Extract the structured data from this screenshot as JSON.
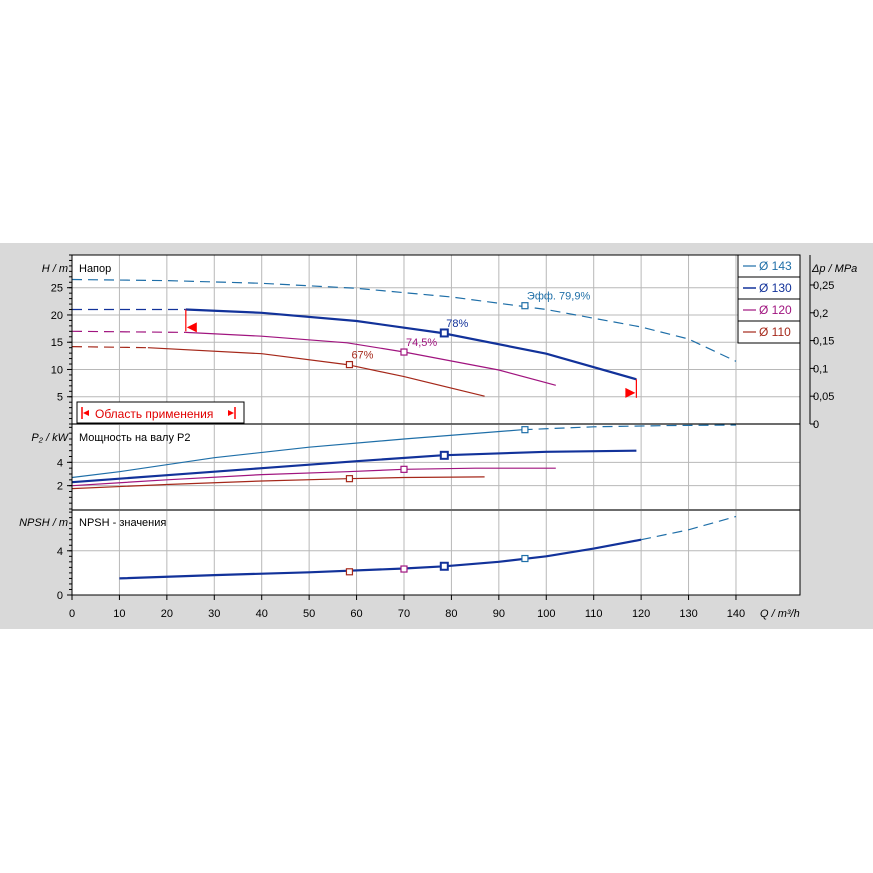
{
  "legend": {
    "items": [
      {
        "label": "Ø 143",
        "color": "#1f6fa8",
        "dashed": true
      },
      {
        "label": "Ø 130",
        "color": "#12329a",
        "dashed": false
      },
      {
        "label": "Ø 120",
        "color": "#a0147f",
        "dashed": false
      },
      {
        "label": "Ø 110",
        "color": "#a5281a",
        "dashed": false
      }
    ]
  },
  "range_label": "Область применения",
  "chart_data": [
    {
      "type": "line",
      "title": "Напор",
      "ylabel": "H / m",
      "y2label": "Δp / MPa",
      "ylim": [
        0,
        31
      ],
      "yticks": [
        5,
        10,
        15,
        20,
        25
      ],
      "y2ticks": [
        "0",
        "0,05",
        "0,1",
        "0,15",
        "0,2",
        "0,25"
      ],
      "grid": true,
      "series": [
        {
          "name": "Ø 143",
          "color": "#1f6fa8",
          "dashed": true,
          "points": [
            [
              0,
              26.5
            ],
            [
              20,
              26.3
            ],
            [
              40,
              25.8
            ],
            [
              60,
              24.9
            ],
            [
              80,
              23.3
            ],
            [
              100,
              21.0
            ],
            [
              120,
              17.8
            ],
            [
              130,
              15.6
            ],
            [
              140,
              11.5
            ]
          ]
        },
        {
          "name": "Ø 130",
          "color": "#12329a",
          "dashed": true,
          "points": [
            [
              0,
              21.0
            ],
            [
              24,
              21.0
            ]
          ]
        },
        {
          "name": "Ø 130",
          "color": "#12329a",
          "dashed": false,
          "bold": true,
          "points": [
            [
              24,
              21.0
            ],
            [
              40,
              20.4
            ],
            [
              60,
              18.9
            ],
            [
              78,
              16.7
            ],
            [
              100,
              12.9
            ],
            [
              119,
              8.2
            ]
          ]
        },
        {
          "name": "Ø 120",
          "color": "#a0147f",
          "dashed": true,
          "points": [
            [
              0,
              17.0
            ],
            [
              24,
              16.8
            ]
          ]
        },
        {
          "name": "Ø 120",
          "color": "#a0147f",
          "dashed": false,
          "points": [
            [
              24,
              16.8
            ],
            [
              40,
              16.1
            ],
            [
              58,
              14.9
            ],
            [
              70,
              13.2
            ],
            [
              90,
              9.9
            ],
            [
              102,
              7.1
            ]
          ]
        },
        {
          "name": "Ø 110",
          "color": "#a5281a",
          "dashed": true,
          "points": [
            [
              0,
              14.2
            ],
            [
              16,
              14.0
            ]
          ]
        },
        {
          "name": "Ø 110",
          "color": "#a5281a",
          "dashed": false,
          "points": [
            [
              16,
              14.0
            ],
            [
              40,
              12.9
            ],
            [
              58,
              10.9
            ],
            [
              70,
              8.7
            ],
            [
              87,
              5.1
            ]
          ]
        }
      ],
      "markers": [
        {
          "x": 95.5,
          "y": 21.7,
          "color": "#1f6fa8",
          "label": "Эфф.  79,9%"
        },
        {
          "x": 78.5,
          "y": 16.7,
          "color": "#12329a",
          "label": "78%",
          "bold": true
        },
        {
          "x": 70,
          "y": 13.2,
          "color": "#a0147f",
          "label": "74,5%"
        },
        {
          "x": 58.5,
          "y": 10.9,
          "color": "#a5281a",
          "label": "67%"
        }
      ],
      "range": {
        "qmin": 24,
        "qmax": 119
      }
    },
    {
      "type": "line",
      "title": "Мощность на валу P2",
      "ylabel": "P₂ / kW",
      "ylim": [
        0,
        7.2
      ],
      "yticks": [
        2,
        4
      ],
      "grid": true,
      "series": [
        {
          "name": "Ø 143",
          "color": "#1f6fa8",
          "dashed": false,
          "points": [
            [
              0,
              2.7
            ],
            [
              10,
              3.2
            ],
            [
              30,
              4.4
            ],
            [
              50,
              5.3
            ],
            [
              70,
              6.0
            ],
            [
              95,
              6.8
            ]
          ]
        },
        {
          "name": "Ø 143",
          "color": "#1f6fa8",
          "dashed": true,
          "points": [
            [
              95,
              6.8
            ],
            [
              110,
              7.05
            ],
            [
              125,
              7.15
            ],
            [
              140,
              7.2
            ]
          ]
        },
        {
          "name": "Ø 130",
          "color": "#12329a",
          "dashed": false,
          "bold": true,
          "points": [
            [
              0,
              2.3
            ],
            [
              20,
              2.9
            ],
            [
              40,
              3.5
            ],
            [
              60,
              4.1
            ],
            [
              78,
              4.6
            ],
            [
              100,
              4.9
            ],
            [
              119,
              5.0
            ]
          ]
        },
        {
          "name": "Ø 120",
          "color": "#a0147f",
          "dashed": false,
          "points": [
            [
              0,
              2.0
            ],
            [
              20,
              2.5
            ],
            [
              40,
              2.95
            ],
            [
              58,
              3.2
            ],
            [
              70,
              3.4
            ],
            [
              85,
              3.5
            ],
            [
              102,
              3.5
            ]
          ]
        },
        {
          "name": "Ø 110",
          "color": "#a5281a",
          "dashed": false,
          "points": [
            [
              0,
              1.75
            ],
            [
              20,
              2.1
            ],
            [
              40,
              2.4
            ],
            [
              58,
              2.6
            ],
            [
              70,
              2.7
            ],
            [
              87,
              2.75
            ]
          ]
        }
      ],
      "markers": [
        {
          "x": 95.5,
          "y": 6.8,
          "color": "#1f6fa8"
        },
        {
          "x": 78.5,
          "y": 4.6,
          "color": "#12329a",
          "bold": true
        },
        {
          "x": 70,
          "y": 3.4,
          "color": "#a0147f"
        },
        {
          "x": 58.5,
          "y": 2.6,
          "color": "#a5281a"
        }
      ]
    },
    {
      "type": "line",
      "title": "NPSH - значения",
      "ylabel": "NPSH / m",
      "ylim": [
        0,
        7.6
      ],
      "yticks": [
        0,
        4
      ],
      "grid": true,
      "xlabel": "Q / m³/h",
      "xticks": [
        0,
        10,
        20,
        30,
        40,
        50,
        60,
        70,
        80,
        90,
        100,
        110,
        120,
        130,
        140
      ],
      "xlim": [
        0,
        153.5
      ],
      "series": [
        {
          "name": "Ø 130",
          "color": "#12329a",
          "dashed": false,
          "bold": true,
          "points": [
            [
              10,
              1.5
            ],
            [
              30,
              1.8
            ],
            [
              50,
              2.05
            ],
            [
              70,
              2.4
            ],
            [
              78.5,
              2.6
            ],
            [
              90,
              3.0
            ],
            [
              100,
              3.5
            ],
            [
              110,
              4.2
            ],
            [
              120,
              5.0
            ]
          ]
        },
        {
          "name": "Ø 143",
          "color": "#1f6fa8",
          "dashed": true,
          "points": [
            [
              120,
              5.0
            ],
            [
              130,
              5.9
            ],
            [
              140,
              7.1
            ]
          ]
        }
      ],
      "markers": [
        {
          "x": 95.5,
          "y": 3.3,
          "color": "#1f6fa8"
        },
        {
          "x": 78.5,
          "y": 2.6,
          "color": "#12329a",
          "bold": true
        },
        {
          "x": 70,
          "y": 2.35,
          "color": "#a0147f"
        },
        {
          "x": 58.5,
          "y": 2.1,
          "color": "#a5281a"
        }
      ]
    }
  ]
}
